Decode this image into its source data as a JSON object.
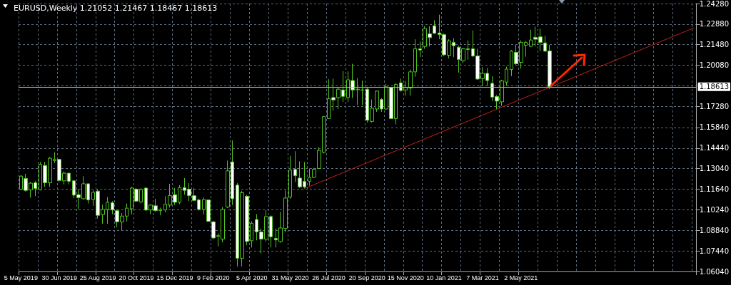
{
  "chart_data": {
    "type": "candlestick",
    "title": "EURUSD,Weekly 1.21052 1.21467 1.18467 1.18613",
    "color": "#4fc41f",
    "categories": [
      "5 May 2019",
      null,
      null,
      null,
      null,
      null,
      null,
      null,
      "30 Jun 2019",
      null,
      null,
      null,
      null,
      null,
      null,
      null,
      "25 Aug 2019",
      null,
      null,
      null,
      null,
      null,
      null,
      null,
      "20 Oct 2019",
      null,
      null,
      null,
      null,
      null,
      null,
      null,
      "15 Dec 2019",
      null,
      null,
      null,
      null,
      null,
      null,
      null,
      "9 Feb 2020",
      null,
      null,
      null,
      null,
      null,
      null,
      null,
      "5 Apr 2020",
      null,
      null,
      null,
      null,
      null,
      null,
      null,
      "31 May 2020",
      null,
      null,
      null,
      null,
      null,
      null,
      null,
      "26 Jul 2020",
      null,
      null,
      null,
      null,
      null,
      null,
      null,
      "20 Sep 2020",
      null,
      null,
      null,
      null,
      null,
      null,
      null,
      "15 Nov 2020",
      null,
      null,
      null,
      null,
      null,
      null,
      null,
      "10 Jan 2021",
      null,
      null,
      null,
      null,
      null,
      null,
      null,
      "7 Mar 2021",
      null,
      null,
      null,
      null,
      null,
      null,
      null,
      "2 May 2021",
      null,
      null,
      null,
      null,
      null,
      null,
      null,
      null,
      null,
      null,
      null,
      null,
      null,
      null,
      null,
      null,
      null,
      null,
      null,
      null,
      null,
      null,
      null,
      null,
      null,
      null,
      null,
      null,
      null,
      null,
      null,
      null,
      null,
      null,
      null,
      null
    ],
    "ohlc": [
      [
        1.1164,
        1.1261,
        1.1156,
        1.1253
      ],
      [
        1.1237,
        1.1269,
        1.1148,
        1.1156
      ],
      [
        1.1159,
        1.1213,
        1.1107,
        1.1205
      ],
      [
        1.1208,
        1.1221,
        1.1116,
        1.1169
      ],
      [
        1.1159,
        1.135,
        1.1156,
        1.1334
      ],
      [
        1.1326,
        1.135,
        1.118,
        1.1208
      ],
      [
        1.1208,
        1.1383,
        1.118,
        1.1375
      ],
      [
        1.1359,
        1.1415,
        1.1342,
        1.1367
      ],
      [
        1.1367,
        1.137,
        1.1213,
        1.1224
      ],
      [
        1.1221,
        1.1286,
        1.1197,
        1.1273
      ],
      [
        1.1273,
        1.1278,
        1.1197,
        1.1218
      ],
      [
        1.1221,
        1.1224,
        1.1104,
        1.1124
      ],
      [
        1.1127,
        1.1164,
        1.103,
        1.1107
      ],
      [
        1.1099,
        1.1253,
        1.1094,
        1.1201
      ],
      [
        1.1201,
        1.1205,
        1.1067,
        1.1091
      ],
      [
        1.1094,
        1.1156,
        1.1051,
        1.1143
      ],
      [
        1.1151,
        1.1164,
        1.0965,
        1.0986
      ],
      [
        1.0991,
        1.1059,
        1.0929,
        1.1026
      ],
      [
        1.1026,
        1.1111,
        1.0929,
        1.1075
      ],
      [
        1.1072,
        1.1083,
        1.0994,
        1.1023
      ],
      [
        1.1018,
        1.1026,
        1.0905,
        1.0942
      ],
      [
        1.0941,
        1.1002,
        1.0884,
        1.0981
      ],
      [
        1.0981,
        1.1067,
        1.0945,
        1.1035
      ],
      [
        1.1031,
        1.118,
        1.0994,
        1.1172
      ],
      [
        1.1164,
        1.1172,
        1.1075,
        1.1083
      ],
      [
        1.1078,
        1.1172,
        1.1067,
        1.1162
      ],
      [
        1.1172,
        1.1175,
        1.1018,
        1.1022
      ],
      [
        1.1023,
        1.1062,
        1.0994,
        1.1056
      ],
      [
        1.1051,
        1.1099,
        1.1013,
        1.1018
      ],
      [
        1.1018,
        1.1039,
        1.0986,
        1.1026
      ],
      [
        1.1023,
        1.1116,
        1.1007,
        1.1062
      ],
      [
        1.1056,
        1.1201,
        1.1039,
        1.112
      ],
      [
        1.1127,
        1.1172,
        1.1056,
        1.1075
      ],
      [
        1.1075,
        1.1192,
        1.1062,
        1.1175
      ],
      [
        1.1175,
        1.124,
        1.1127,
        1.1156
      ],
      [
        1.1164,
        1.1205,
        1.1083,
        1.112
      ],
      [
        1.112,
        1.1172,
        1.1083,
        1.1088
      ],
      [
        1.1091,
        1.1099,
        1.1018,
        1.1026
      ],
      [
        1.1026,
        1.1107,
        1.0991,
        1.1094
      ],
      [
        1.1091,
        1.1094,
        1.0942,
        1.0945
      ],
      [
        1.0942,
        1.0949,
        1.0824,
        1.0832
      ],
      [
        1.0843,
        1.0864,
        1.0775,
        1.0848
      ],
      [
        1.0824,
        1.1043,
        1.0803,
        1.1026
      ],
      [
        1.1043,
        1.1359,
        1.1035,
        1.1289
      ],
      [
        1.135,
        1.1496,
        1.1056,
        1.1099
      ],
      [
        1.1192,
        1.1205,
        1.0638,
        1.0694
      ],
      [
        1.0694,
        1.1153,
        1.0638,
        1.114
      ],
      [
        1.1116,
        1.1124,
        1.0783,
        1.0808
      ],
      [
        1.0813,
        1.0945,
        1.0767,
        1.0932
      ],
      [
        1.0958,
        1.0994,
        1.0816,
        1.0873
      ],
      [
        1.0873,
        1.0897,
        1.0727,
        1.0824
      ],
      [
        1.0824,
        1.1023,
        1.0808,
        1.0978
      ],
      [
        1.0978,
        1.0986,
        1.0767,
        1.084
      ],
      [
        1.0829,
        1.0897,
        1.0767,
        1.0819
      ],
      [
        1.0808,
        1.101,
        1.08,
        1.09
      ],
      [
        1.0897,
        1.1156,
        1.0873,
        1.1104
      ],
      [
        1.1111,
        1.1391,
        1.1099,
        1.1294
      ],
      [
        1.1299,
        1.1423,
        1.1213,
        1.1256
      ],
      [
        1.124,
        1.1354,
        1.1172,
        1.118
      ],
      [
        1.1218,
        1.135,
        1.1169,
        1.118
      ],
      [
        1.1218,
        1.1305,
        1.1188,
        1.1245
      ],
      [
        1.1245,
        1.131,
        1.124,
        1.1299
      ],
      [
        1.1305,
        1.1451,
        1.1302,
        1.1428
      ],
      [
        1.1415,
        1.1661,
        1.1407,
        1.1658
      ],
      [
        1.1645,
        1.1913,
        1.1642,
        1.178
      ],
      [
        1.1788,
        1.1917,
        1.1699,
        1.1772
      ],
      [
        1.1788,
        1.1856,
        1.171,
        1.1845
      ],
      [
        1.184,
        1.1969,
        1.1759,
        1.1796
      ],
      [
        1.1788,
        1.1966,
        1.1759,
        1.1909
      ],
      [
        1.1904,
        1.2018,
        1.1785,
        1.184
      ],
      [
        1.1841,
        1.1921,
        1.1739,
        1.1845
      ],
      [
        1.184,
        1.1904,
        1.1736,
        1.1838
      ],
      [
        1.1845,
        1.1856,
        1.1618,
        1.1634
      ],
      [
        1.1626,
        1.1775,
        1.1618,
        1.1715
      ],
      [
        1.171,
        1.1836,
        1.1691,
        1.1832
      ],
      [
        1.1775,
        1.1785,
        1.1691,
        1.171
      ],
      [
        1.171,
        1.1882,
        1.1707,
        1.1861
      ],
      [
        1.1856,
        1.1861,
        1.1642,
        1.1645
      ],
      [
        1.1645,
        1.1885,
        1.1606,
        1.1877
      ],
      [
        1.1888,
        1.1917,
        1.1828,
        1.1836
      ],
      [
        1.184,
        1.1901,
        1.1801,
        1.1856
      ],
      [
        1.1853,
        1.1979,
        1.1801,
        1.1963
      ],
      [
        1.1963,
        1.2185,
        1.193,
        1.212
      ],
      [
        1.212,
        1.2169,
        1.2063,
        1.2112
      ],
      [
        1.2136,
        1.2274,
        1.212,
        1.2258
      ],
      [
        1.2222,
        1.2274,
        1.2136,
        1.2196
      ],
      [
        1.2277,
        1.2314,
        1.2222,
        1.2225
      ],
      [
        1.2228,
        1.2352,
        1.2185,
        1.2217
      ],
      [
        1.2217,
        1.2225,
        1.2071,
        1.2079
      ],
      [
        1.2076,
        1.2185,
        1.2055,
        1.2173
      ],
      [
        1.2164,
        1.2193,
        1.2063,
        1.2141
      ],
      [
        1.2131,
        1.2141,
        1.1958,
        1.2047
      ],
      [
        1.2039,
        1.2128,
        1.2023,
        1.212
      ],
      [
        1.2115,
        1.2177,
        1.2047,
        1.212
      ],
      [
        1.212,
        1.2245,
        1.2063,
        1.2071
      ],
      [
        1.2071,
        1.212,
        1.1909,
        1.1914
      ],
      [
        1.1917,
        1.1995,
        1.1869,
        1.1953
      ],
      [
        1.1953,
        1.199,
        1.1869,
        1.1904
      ],
      [
        1.1885,
        1.1934,
        1.1764,
        1.1791
      ],
      [
        1.1796,
        1.1804,
        1.171,
        1.1764
      ],
      [
        1.1759,
        1.1909,
        1.1731,
        1.1901
      ],
      [
        1.1893,
        1.1998,
        1.1869,
        1.1982
      ],
      [
        1.1979,
        1.2112,
        1.1934,
        1.2104
      ],
      [
        1.2096,
        1.2147,
        1.2011,
        1.2018
      ],
      [
        1.2028,
        1.2177,
        1.1985,
        1.2164
      ],
      [
        1.2144,
        1.2173,
        1.2066,
        1.2164
      ],
      [
        1.2136,
        1.225,
        1.2131,
        1.218
      ],
      [
        1.2198,
        1.2271,
        1.2136,
        1.2185
      ],
      [
        1.2201,
        1.2258,
        1.2104,
        1.2164
      ],
      [
        1.216,
        1.2209,
        1.21,
        1.2104
      ],
      [
        1.21052,
        1.21467,
        1.18467,
        1.18613
      ],
      null,
      null,
      null,
      null,
      null,
      null,
      null,
      null,
      null,
      null,
      null,
      null,
      null,
      null,
      null,
      null,
      null,
      null,
      null,
      null,
      null,
      null,
      null,
      null,
      null,
      null,
      null,
      null,
      null,
      null
    ],
    "series": [
      {
        "type": "line",
        "color": "#c0201a",
        "values": [
          null,
          null,
          null,
          null,
          null,
          null,
          null,
          null,
          null,
          null,
          null,
          null,
          null,
          null,
          null,
          null,
          null,
          null,
          null,
          null,
          null,
          null,
          null,
          null,
          null,
          null,
          null,
          null,
          null,
          null,
          null,
          null,
          null,
          null,
          null,
          null,
          null,
          null,
          null,
          null,
          null,
          null,
          null,
          null,
          null,
          null,
          null,
          null,
          null,
          null,
          null,
          null,
          null,
          null,
          null,
          null,
          null,
          null,
          null,
          1.1169,
          null,
          null,
          null,
          null,
          null,
          null,
          null,
          null,
          null,
          null,
          null,
          null,
          null,
          null,
          null,
          null,
          null,
          null,
          null,
          null,
          null,
          null,
          null,
          null,
          null,
          null,
          null,
          null,
          null,
          null,
          null,
          null,
          null,
          null,
          null,
          null,
          null,
          null,
          null,
          null,
          null,
          null,
          null,
          null,
          null,
          null,
          null,
          null,
          null,
          null,
          null,
          null,
          null,
          null,
          null,
          null,
          null,
          null,
          null,
          null,
          null,
          null,
          null,
          null,
          null,
          null,
          null,
          null,
          null,
          null,
          null,
          null,
          null,
          null,
          null,
          null,
          null,
          null,
          null,
          null,
          1.2263
        ]
      }
    ],
    "ylim": [
      1.0604,
      1.2428
    ],
    "yticks": [
      {
        "value": 1.2428,
        "label": "1.24280"
      },
      {
        "value": 1.2288,
        "label": "1.22880"
      },
      {
        "value": 1.2148,
        "label": "1.21480"
      },
      {
        "value": 1.2008,
        "label": "1.20080"
      },
      {
        "value": 1.1868,
        "label": null
      },
      {
        "value": 1.1728,
        "label": "1.17280"
      },
      {
        "value": 1.1584,
        "label": "1.15840"
      },
      {
        "value": 1.1444,
        "label": "1.14440"
      },
      {
        "value": 1.1304,
        "label": "1.13040"
      },
      {
        "value": 1.1164,
        "label": "1.11640"
      },
      {
        "value": 1.1024,
        "label": "1.10240"
      },
      {
        "value": 1.0884,
        "label": "1.08840"
      },
      {
        "value": 1.0744,
        "label": "1.07440"
      },
      {
        "value": 1.0604,
        "label": "1.06040"
      }
    ],
    "ref_lines": [
      {
        "axis": "y",
        "value": 1.18613,
        "label": "1.18613",
        "color": "#a9b8c8"
      }
    ],
    "grid": true
  }
}
